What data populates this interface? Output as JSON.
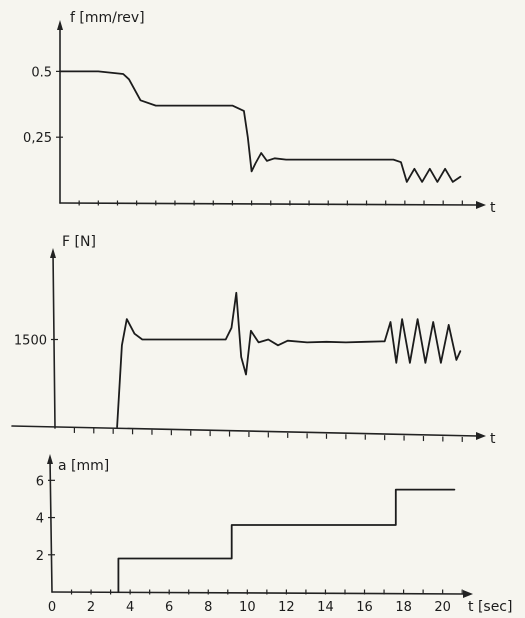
{
  "chart_data": [
    {
      "type": "line",
      "ylabel": "f [mm/rev]",
      "xlabel": "t",
      "y_ticks": [
        "0.5",
        "0,25"
      ],
      "y_tick_values": [
        0.5,
        0.25
      ],
      "ylim": [
        0,
        0.68
      ],
      "xlim": [
        0,
        21.4
      ],
      "x": [
        0,
        2,
        3.3,
        3.6,
        4.2,
        5,
        6,
        7,
        8,
        9,
        9.6,
        9.8,
        10.0,
        10.2,
        10.5,
        10.8,
        11.2,
        11.8,
        12.5,
        13.5,
        14.5,
        15.5,
        16.5,
        17.4,
        17.8,
        18.1,
        18.5,
        18.9,
        19.3,
        19.7,
        20.1,
        20.5,
        20.9
      ],
      "y": [
        0.5,
        0.5,
        0.49,
        0.47,
        0.39,
        0.37,
        0.37,
        0.37,
        0.37,
        0.37,
        0.35,
        0.25,
        0.12,
        0.15,
        0.19,
        0.16,
        0.17,
        0.165,
        0.165,
        0.165,
        0.165,
        0.165,
        0.165,
        0.165,
        0.155,
        0.08,
        0.13,
        0.08,
        0.13,
        0.08,
        0.13,
        0.08,
        0.1
      ]
    },
    {
      "type": "line",
      "ylabel": "F [N]",
      "xlabel": "t",
      "y_ticks": [
        "1500"
      ],
      "y_tick_values": [
        1500
      ],
      "ylim": [
        0,
        3000
      ],
      "xlim": [
        0,
        21.4
      ],
      "x": [
        3.2,
        3.45,
        3.7,
        4.1,
        4.5,
        5,
        6,
        7,
        8,
        8.8,
        9.1,
        9.35,
        9.6,
        9.85,
        10.1,
        10.5,
        11,
        11.5,
        12,
        13,
        14,
        15,
        16,
        17,
        17.3,
        17.6,
        17.9,
        18.3,
        18.7,
        19.1,
        19.5,
        19.9,
        20.3,
        20.7,
        20.9
      ],
      "y": [
        0,
        1400,
        1850,
        1600,
        1500,
        1500,
        1500,
        1500,
        1500,
        1500,
        1700,
        2300,
        1200,
        900,
        1650,
        1450,
        1500,
        1400,
        1480,
        1450,
        1460,
        1450,
        1460,
        1470,
        1800,
        1100,
        1850,
        1100,
        1850,
        1100,
        1800,
        1100,
        1750,
        1150,
        1300
      ]
    },
    {
      "type": "line",
      "step": true,
      "ylabel": "a [mm]",
      "xlabel": "t [sec]",
      "y_ticks": [
        "2",
        "4",
        "6"
      ],
      "y_tick_values": [
        2,
        4,
        6
      ],
      "ylim": [
        0,
        7.2
      ],
      "xlim": [
        0,
        21.4
      ],
      "x_ticks": [
        "0",
        "2",
        "4",
        "6",
        "8",
        "10",
        "12",
        "14",
        "16",
        "18",
        "20"
      ],
      "x_tick_values": [
        0,
        2,
        4,
        6,
        8,
        10,
        12,
        14,
        16,
        18,
        20
      ],
      "x": [
        3.4,
        3.4,
        9.2,
        9.2,
        17.6,
        17.6,
        20.6
      ],
      "y": [
        0,
        1.8,
        1.8,
        3.6,
        3.6,
        5.5,
        5.5
      ]
    }
  ]
}
